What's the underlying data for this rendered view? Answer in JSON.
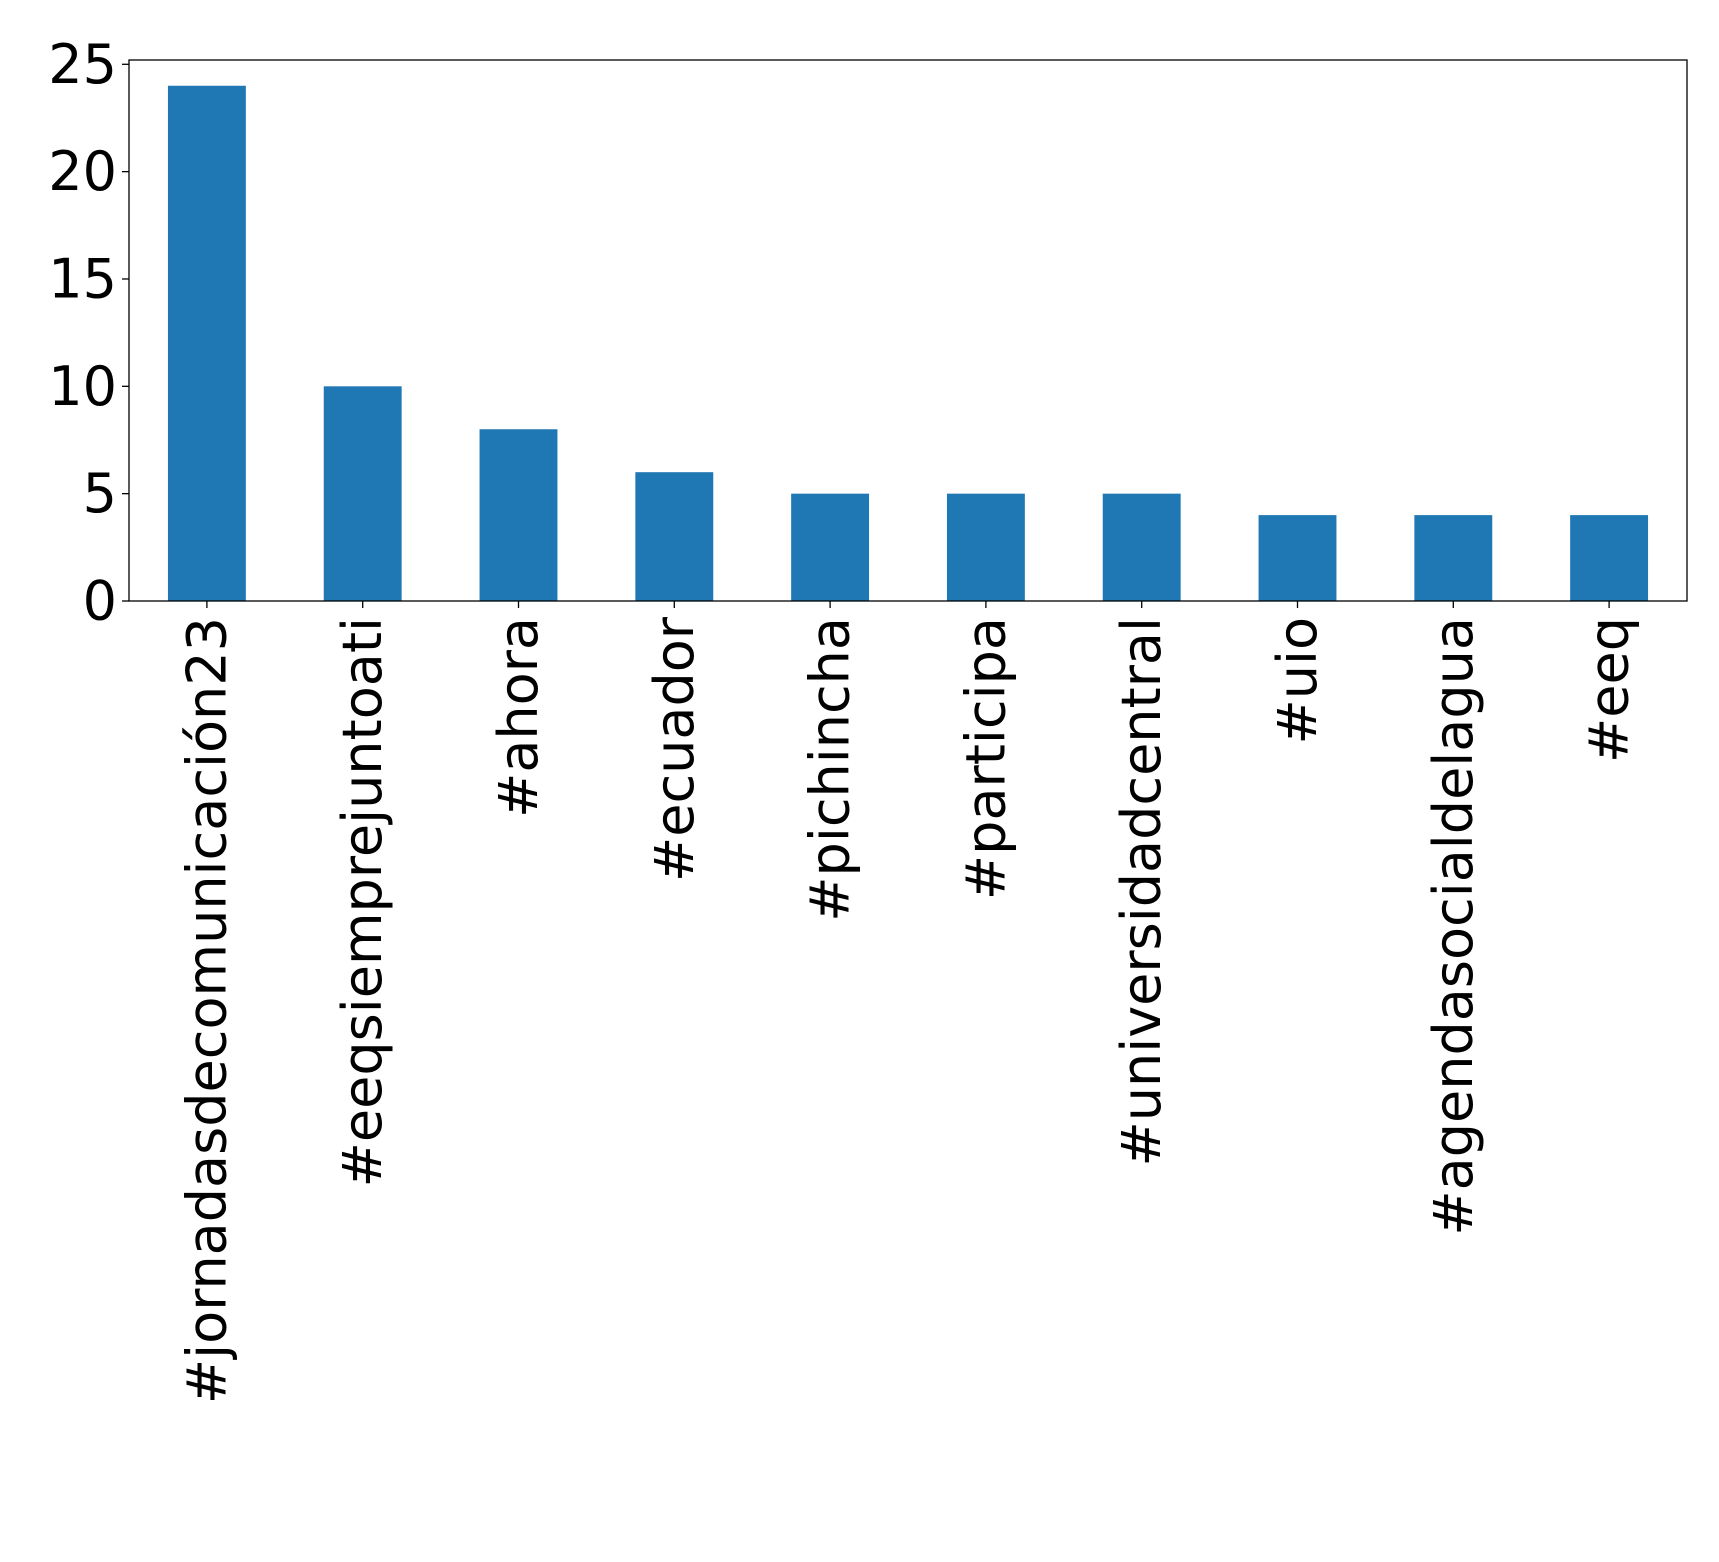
{
  "chart_data": {
    "type": "bar",
    "title": "",
    "xlabel": "",
    "ylabel": "",
    "categories": [
      "#jornadasdecomunicación23",
      "#eeqsiemprejuntoati",
      "#ahora",
      "#ecuador",
      "#pichincha",
      "#participa",
      "#universidadcentral",
      "#uio",
      "#agendasocialdelagua",
      "#eeq"
    ],
    "values": [
      24,
      10,
      8,
      6,
      5,
      5,
      5,
      4,
      4,
      4
    ],
    "ylim": [
      0,
      25.2
    ],
    "yticks": [
      0,
      5,
      10,
      15,
      20,
      25
    ],
    "ytick_labels": [
      "0",
      "5",
      "10",
      "15",
      "20",
      "25"
    ],
    "grid": false,
    "legend": "none",
    "bar_color": "#1f77b4"
  }
}
